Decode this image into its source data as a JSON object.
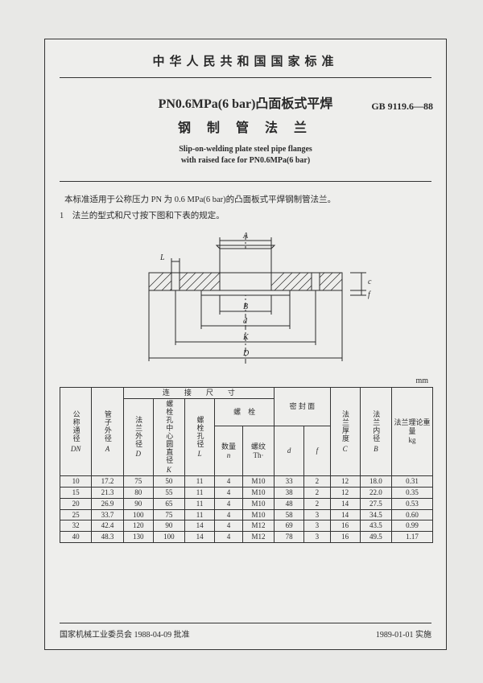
{
  "background_color": "#e8e8e6",
  "page_color": "#eeeeec",
  "border_color": "#333333",
  "header": {
    "supertitle": "中华人民共和国国家标准",
    "title_cn_line1": "PN0.6MPa(6 bar)凸面板式平焊",
    "title_cn_line2": "钢 制 管 法 兰",
    "standard_code": "GB 9119.6—88",
    "title_en_line1": "Slip-on-welding plate steel pipe flanges",
    "title_en_line2": "with raised face for PN0.6MPa(6 bar)"
  },
  "body": {
    "scope": "本标准适用于公称压力 PN 为 0.6 MPa(6 bar)的凸面板式平焊钢制管法兰。",
    "clause1": "1　法兰的型式和尺寸按下图和下表的规定。"
  },
  "diagram": {
    "labels": {
      "A": "A",
      "L": "L",
      "B": "B",
      "d": "d",
      "K": "K",
      "D": "D",
      "c": "c",
      "f": "f"
    },
    "stroke": "#2a2a2a",
    "hatch": "#2a2a2a"
  },
  "unit_label": "mm",
  "table": {
    "group_conn": "连　　接　　尺　　寸",
    "group_seal": "密 封 面",
    "group_bolt": "螺　栓",
    "col_dn": "公称通径",
    "col_dn_sym": "DN",
    "col_A": "管子外径",
    "col_A_sym": "A",
    "col_D": "法兰外径",
    "col_D_sym": "D",
    "col_K": "螺栓孔中心圆直径",
    "col_K_sym": "K",
    "col_L": "螺栓孔径",
    "col_L_sym": "L",
    "col_n": "数量",
    "col_n_sym": "n",
    "col_th": "螺纹",
    "col_th_sym": "Th·",
    "col_d": "d",
    "col_f": "f",
    "col_C": "法兰厚度",
    "col_C_sym": "C",
    "col_B": "法兰内径",
    "col_B_sym": "B",
    "col_kg": "法兰理论重　量",
    "col_kg_unit": "kg",
    "rows": [
      [
        "10",
        "17.2",
        "75",
        "50",
        "11",
        "4",
        "M10",
        "33",
        "2",
        "12",
        "18.0",
        "0.31"
      ],
      [
        "15",
        "21.3",
        "80",
        "55",
        "11",
        "4",
        "M10",
        "38",
        "2",
        "12",
        "22.0",
        "0.35"
      ],
      [
        "20",
        "26.9",
        "90",
        "65",
        "11",
        "4",
        "M10",
        "48",
        "2",
        "14",
        "27.5",
        "0.53"
      ],
      [
        "25",
        "33.7",
        "100",
        "75",
        "11",
        "4",
        "M10",
        "58",
        "3",
        "14",
        "34.5",
        "0.60"
      ],
      [
        "32",
        "42.4",
        "120",
        "90",
        "14",
        "4",
        "M12",
        "69",
        "3",
        "16",
        "43.5",
        "0.99"
      ],
      [
        "40",
        "48.3",
        "130",
        "100",
        "14",
        "4",
        "M12",
        "78",
        "3",
        "16",
        "49.5",
        "1.17"
      ]
    ]
  },
  "footer": {
    "left": "国家机械工业委员会 1988-04-09 批准",
    "right": "1989-01-01 实施"
  }
}
